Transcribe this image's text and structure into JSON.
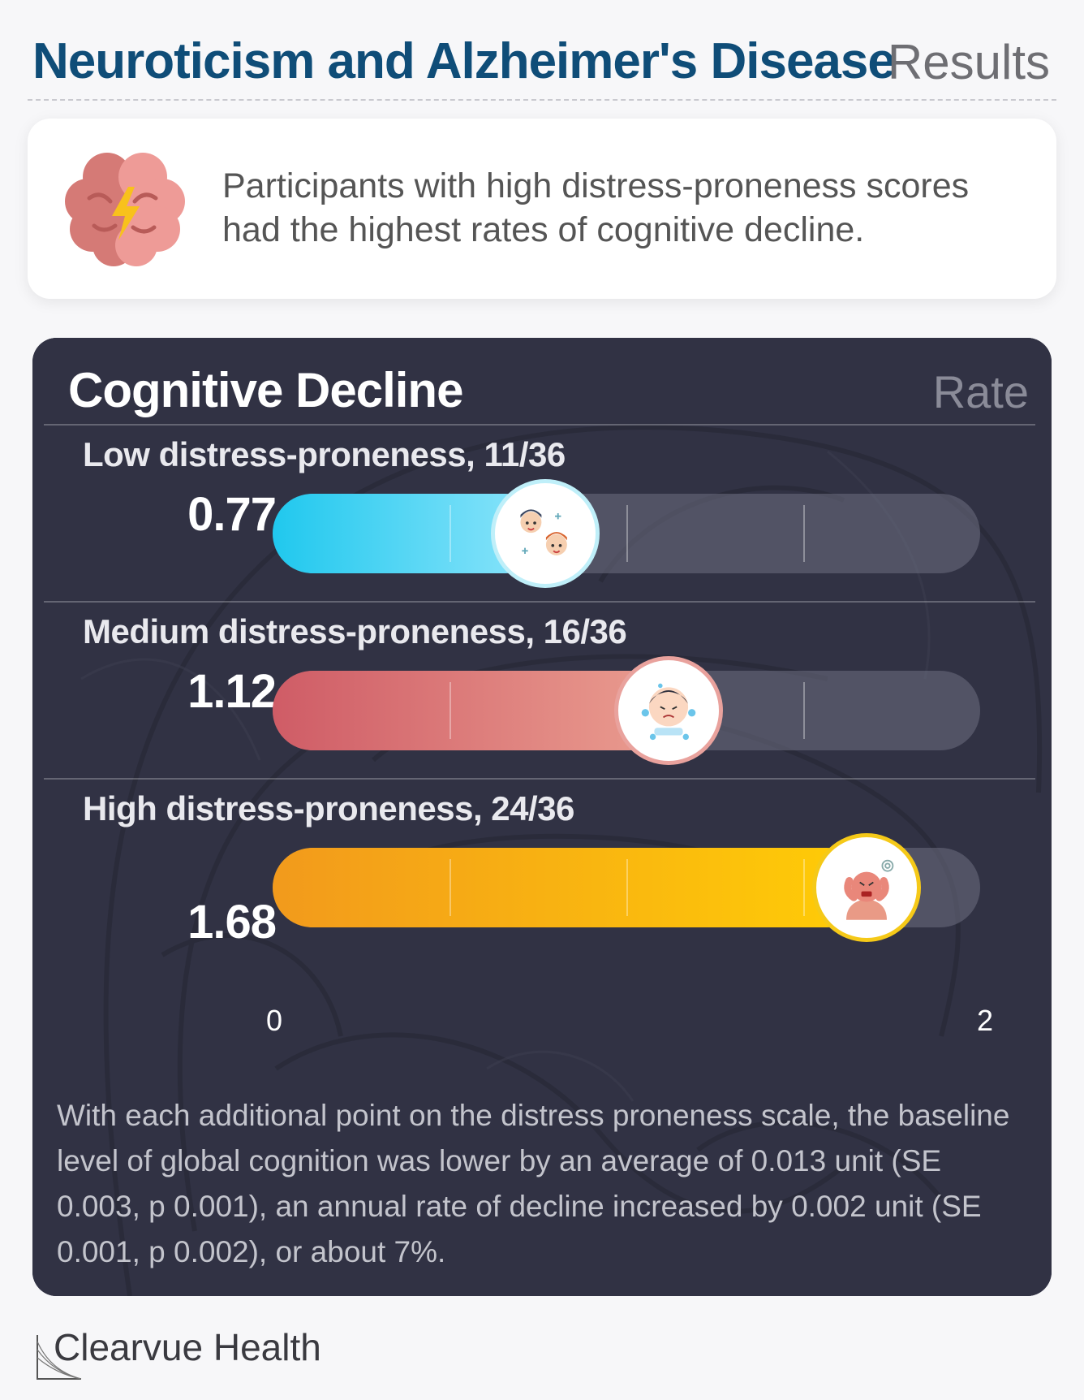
{
  "header": {
    "title": "Neuroticism and Alzheimer's Disease",
    "section": "Results"
  },
  "summary": {
    "icon": "brain-lightning-icon",
    "text": "Participants with high distress-proneness scores had the highest rates of cognitive decline."
  },
  "chart_data": {
    "type": "bar",
    "orientation": "horizontal",
    "title": "Cognitive Decline",
    "measure_label": "Rate",
    "xlim": [
      0,
      2
    ],
    "x_tick_labels": [
      "0",
      "2"
    ],
    "categories": [
      "Low distress-proneness, 11/36",
      "Medium distress-proneness, 16/36",
      "High distress-proneness, 24/36"
    ],
    "values": [
      0.77,
      1.12,
      1.68
    ],
    "value_labels": [
      "0.77",
      "1.12",
      "1.68"
    ],
    "colors": [
      "#2fd3f3",
      "#d9696f",
      "#f7a51e"
    ],
    "marker_icons": [
      "happy-people-icon",
      "sad-child-icon",
      "stressed-person-icon"
    ]
  },
  "footnote": "With each additional point on the distress proneness scale, the baseline level of global cognition was lower by an average of 0.013 unit (SE 0.003, p 0.001), an annual rate of decline increased by 0.002 unit (SE 0.001, p 0.002), or about 7%.",
  "brand": {
    "name": "Clearvue Health",
    "icon": "clearvue-logo-icon"
  }
}
